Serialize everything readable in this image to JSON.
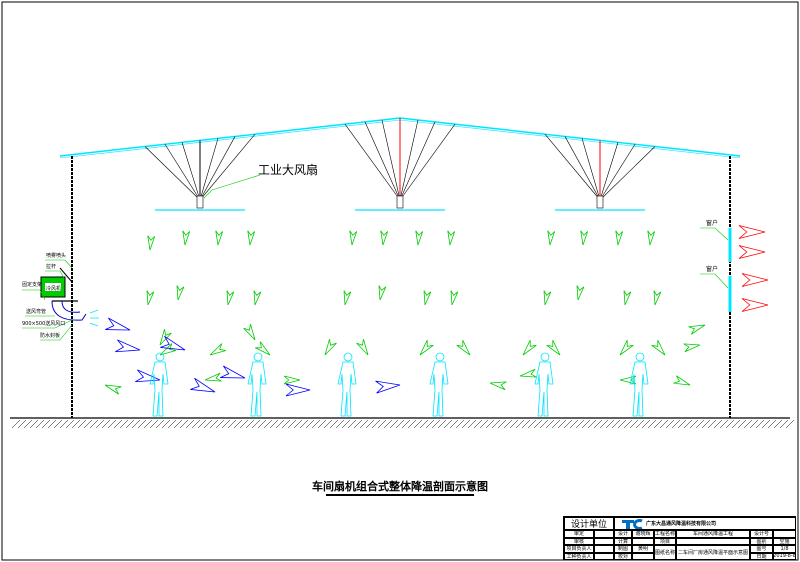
{
  "diagram": {
    "fan_label": "工业大风扇",
    "window_labels": [
      "窗户",
      "窗户"
    ],
    "cooler_labels": {
      "nozzle": "喷雾喷头",
      "rod": "拉杆",
      "bracket": "固定支架",
      "unit": "冷风机",
      "duct": "送风弯管",
      "outlet": "900×500送风风口",
      "seal": "防水封板"
    },
    "title": "车间扇机组合式整体降温剖面示意图",
    "colors": {
      "roof": "#00e5ff",
      "fan_rod_center": "#ff0000",
      "airflow_cool": "#00cc00",
      "airflow_cooler": "#0000ff",
      "airflow_exhaust": "#ff0000",
      "person": "#00e5ff"
    }
  },
  "title_block": {
    "design_unit": "设计单位",
    "company": "广东大昌通风降温科技有限公司",
    "rows_left": [
      "审定",
      "审核",
      "项目负责人",
      "工种负责人"
    ],
    "rows_mid": [
      "设计",
      "计算",
      "制图",
      "校对"
    ],
    "mid_values": [
      "谢晓辉",
      "",
      "黄明",
      ""
    ],
    "project_label": "工程名称",
    "project_value": "车间通风降温工程",
    "item_label": "项目",
    "drawing_label": "图纸名称",
    "drawing_value": "二车间厂房通风降温平面示意图",
    "right_labels": [
      "设计号",
      "图别",
      "图号",
      "日期"
    ],
    "right_values": [
      "",
      "空施",
      "1/8",
      "2019-8-8"
    ]
  }
}
